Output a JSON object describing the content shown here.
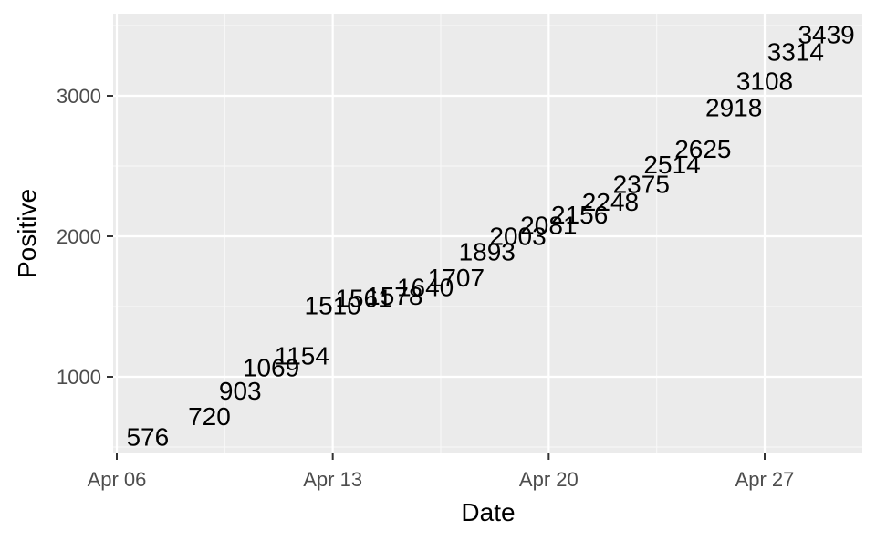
{
  "chart_data": {
    "type": "scatter",
    "mark": "text-label",
    "xlabel": "Date",
    "ylabel": "Positive",
    "x_ticks": [
      "Apr 06",
      "Apr 13",
      "Apr 20",
      "Apr 27"
    ],
    "y_ticks": [
      1000,
      2000,
      3000
    ],
    "xlim": [
      "2020-04-06",
      "2020-04-30"
    ],
    "ylim": [
      450,
      3550
    ],
    "grid": true,
    "panel_background": "#ebebeb",
    "gridline_color": "#ffffff",
    "legend": "none",
    "points": [
      {
        "date": "2020-04-07",
        "positive": 576,
        "label": "576"
      },
      {
        "date": "2020-04-09",
        "positive": 720,
        "label": "720"
      },
      {
        "date": "2020-04-10",
        "positive": 903,
        "label": "903"
      },
      {
        "date": "2020-04-11",
        "positive": 1069,
        "label": "1069"
      },
      {
        "date": "2020-04-12",
        "positive": 1154,
        "label": "1154"
      },
      {
        "date": "2020-04-13",
        "positive": 1510,
        "label": "1510"
      },
      {
        "date": "2020-04-14",
        "positive": 1561,
        "label": "1561"
      },
      {
        "date": "2020-04-15",
        "positive": 1578,
        "label": "1578"
      },
      {
        "date": "2020-04-16",
        "positive": 1640,
        "label": "1640"
      },
      {
        "date": "2020-04-17",
        "positive": 1707,
        "label": "1707"
      },
      {
        "date": "2020-04-18",
        "positive": 1893,
        "label": "1893"
      },
      {
        "date": "2020-04-19",
        "positive": 2003,
        "label": "2003"
      },
      {
        "date": "2020-04-20",
        "positive": 2081,
        "label": "2081"
      },
      {
        "date": "2020-04-21",
        "positive": 2156,
        "label": "2156"
      },
      {
        "date": "2020-04-22",
        "positive": 2248,
        "label": "2248"
      },
      {
        "date": "2020-04-23",
        "positive": 2375,
        "label": "2375"
      },
      {
        "date": "2020-04-24",
        "positive": 2514,
        "label": "2514"
      },
      {
        "date": "2020-04-25",
        "positive": 2625,
        "label": "2625"
      },
      {
        "date": "2020-04-26",
        "positive": 2918,
        "label": "2918"
      },
      {
        "date": "2020-04-27",
        "positive": 3108,
        "label": "3108"
      },
      {
        "date": "2020-04-28",
        "positive": 3314,
        "label": "3314"
      },
      {
        "date": "2020-04-29",
        "positive": 3439,
        "label": "3439"
      }
    ]
  }
}
